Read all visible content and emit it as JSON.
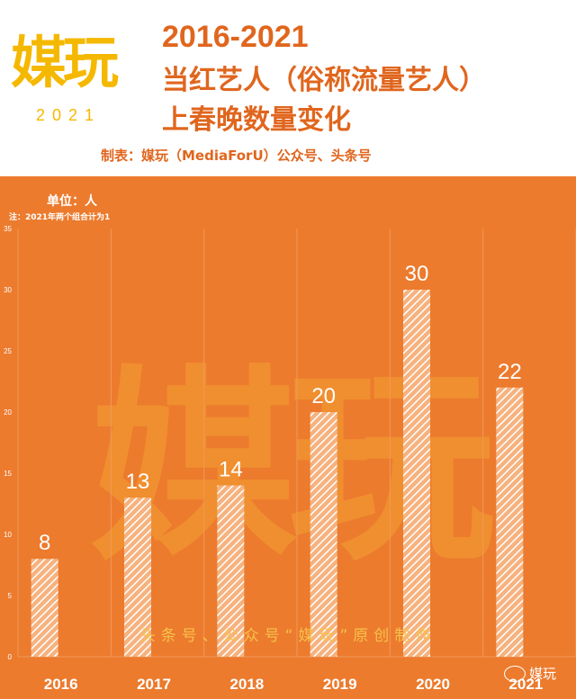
{
  "logo": {
    "mark": "媒玩",
    "year": "2021"
  },
  "title": {
    "line1": "2016-2021",
    "line2": "当红艺人（俗称流量艺人）",
    "line3": "上春晚数量变化"
  },
  "maker": "制表：媒玩（MediaForU）公众号、头条号",
  "unit_label": "单位：人",
  "note": "注：2021年两个组合计为1",
  "watermark_big": "媒玩",
  "watermark_text": "头条号、公众号“媒玩”原创制作",
  "wechat_label": "媒玩",
  "colors": {
    "background": "#ec7b2e",
    "accent": "#e0661e",
    "logo": "#f5b800",
    "bar": "#ffffff"
  },
  "chart_data": {
    "type": "bar",
    "categories": [
      "2016",
      "2017",
      "2018",
      "2019",
      "2020",
      "2021"
    ],
    "values": [
      8,
      13,
      14,
      20,
      30,
      22
    ],
    "ylim": [
      0,
      35
    ],
    "yticks": [
      0,
      5,
      10,
      15,
      20,
      25,
      30,
      35
    ],
    "title": "2016-2021 当红艺人（俗称流量艺人）上春晚数量变化",
    "xlabel": "",
    "ylabel": "单位：人",
    "grid": "vertical"
  }
}
